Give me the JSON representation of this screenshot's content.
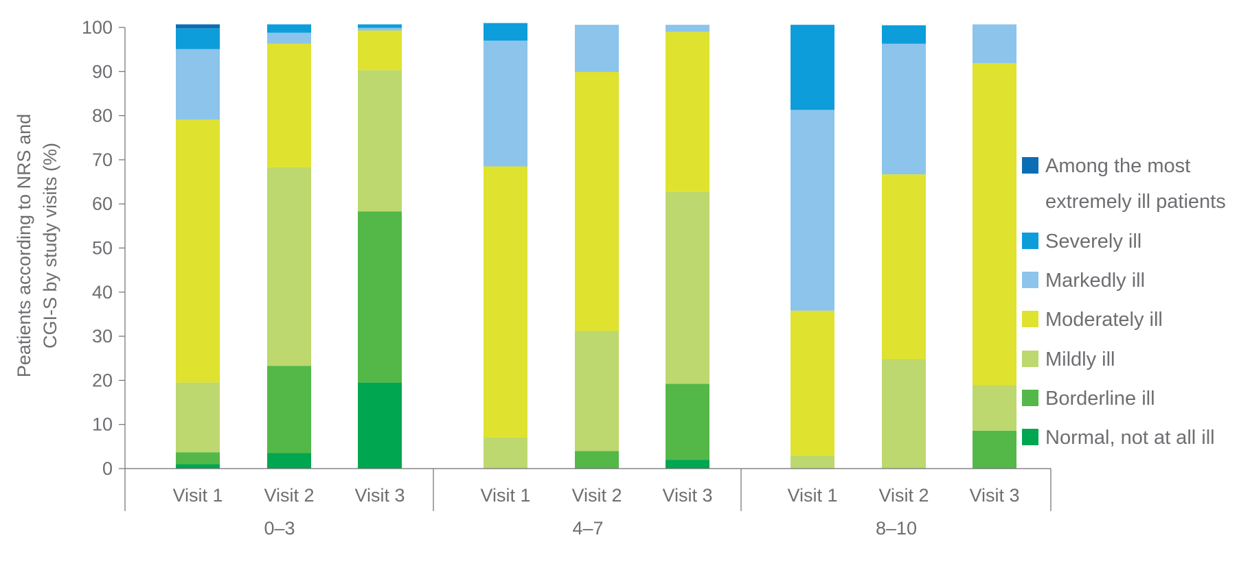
{
  "chart_data": {
    "type": "bar",
    "stacked": true,
    "title": "",
    "ylabel_lines": [
      "Peatients according to NRS and",
      "CGI-S by study visits (%)"
    ],
    "ylim": [
      0,
      100
    ],
    "yticks": [
      0,
      10,
      20,
      30,
      40,
      50,
      60,
      70,
      80,
      90,
      100
    ],
    "groups": [
      {
        "label": "0–3",
        "categories": [
          "Visit 1",
          "Visit 2",
          "Visit 3"
        ]
      },
      {
        "label": "4–7",
        "categories": [
          "Visit 1",
          "Visit 2",
          "Visit 3"
        ]
      },
      {
        "label": "8–10",
        "categories": [
          "Visit 1",
          "Visit 2",
          "Visit 3"
        ]
      }
    ],
    "series": [
      {
        "name": "Normal, not at all ill",
        "color": "#00a650",
        "values": [
          1,
          3.5,
          19.5,
          0,
          0,
          2,
          0,
          0,
          0
        ]
      },
      {
        "name": "Borderline ill",
        "color": "#53b848",
        "values": [
          2.7,
          19.8,
          38.8,
          0,
          4,
          17.2,
          0,
          0,
          8.6
        ]
      },
      {
        "name": "Mildly ill",
        "color": "#bcd86e",
        "values": [
          15.8,
          45,
          32,
          7,
          27.2,
          43.5,
          3,
          24.8,
          10.3
        ]
      },
      {
        "name": "Moderately ill",
        "color": "#dfe22f",
        "values": [
          59.6,
          28,
          9,
          61.5,
          58.7,
          36.3,
          32.8,
          41.9,
          73
        ]
      },
      {
        "name": "Markedly ill",
        "color": "#8cc4eb",
        "values": [
          16,
          2.5,
          0.6,
          28.5,
          10.7,
          1.6,
          45.5,
          29.6,
          8.8
        ]
      },
      {
        "name": "Severely ill",
        "color": "#0d9ddb",
        "values": [
          4.7,
          1.9,
          0.8,
          4,
          0,
          0,
          19.3,
          4.2,
          0
        ]
      },
      {
        "name": "Among the most extremely ill patients",
        "name_lines": [
          "Among the most",
          "extremely ill patients"
        ],
        "color": "#0b6eb5",
        "values": [
          0.9,
          0,
          0,
          0,
          0,
          0,
          0,
          0,
          0
        ]
      }
    ],
    "legend_position": "right",
    "legend_order": [
      "Among the most extremely ill patients",
      "Severely ill",
      "Markedly ill",
      "Moderately ill",
      "Mildly ill",
      "Borderline ill",
      "Normal, not at all ill"
    ],
    "grid": false
  }
}
